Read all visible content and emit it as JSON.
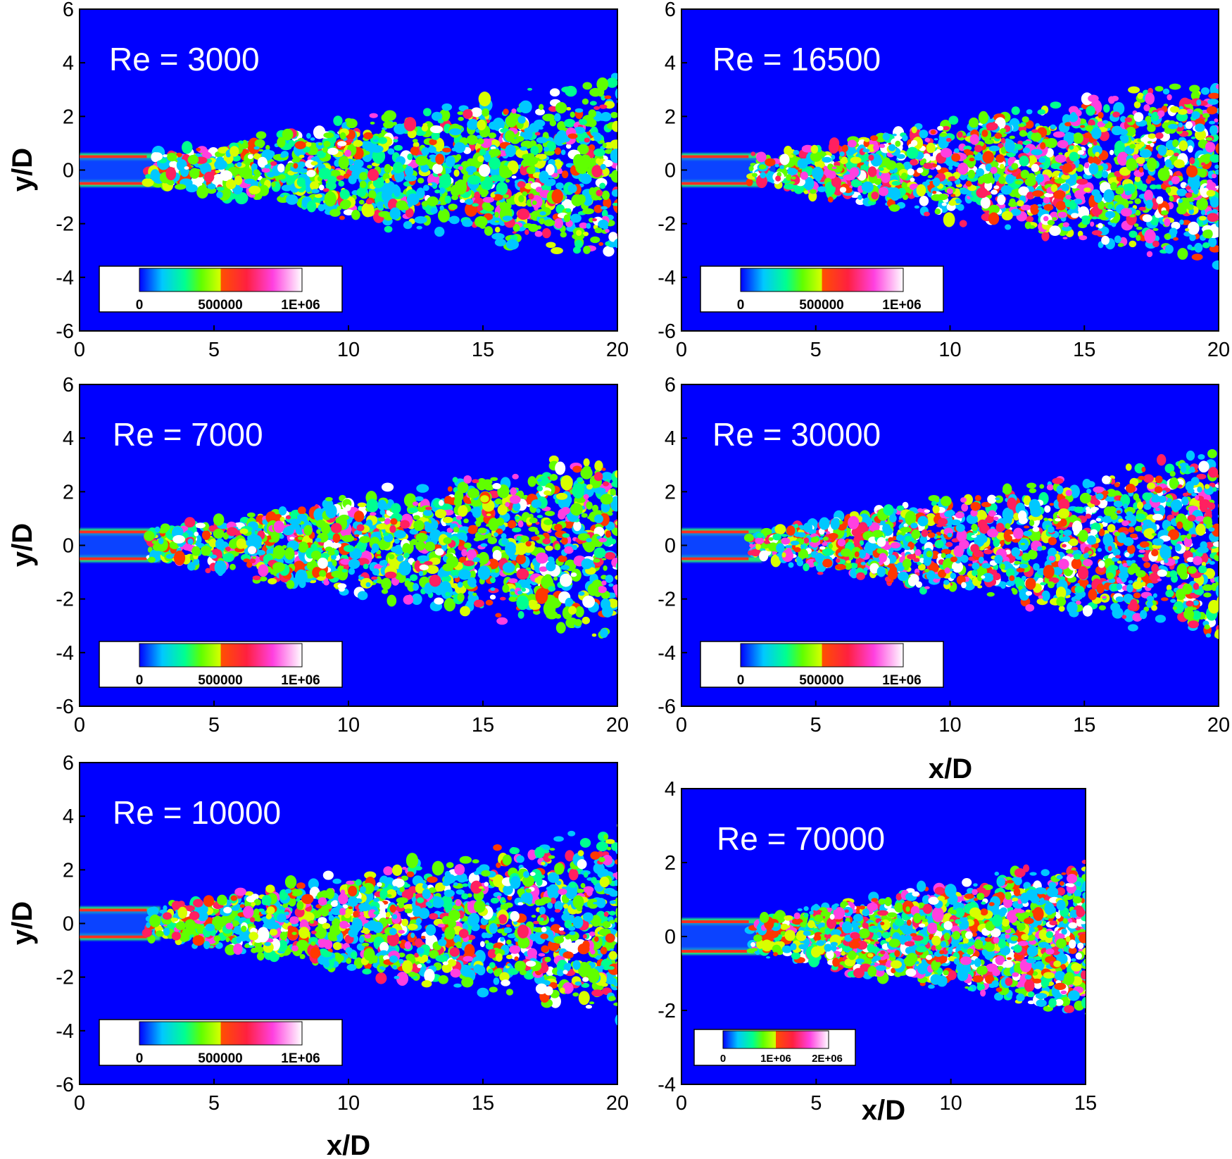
{
  "colors": {
    "background": "#0000ff",
    "colormap": [
      "#0000ff",
      "#00c8ff",
      "#00ff90",
      "#60ff00",
      "#d8ff00",
      "#ff3800",
      "#ff2060",
      "#ff40e0",
      "#ffffff"
    ]
  },
  "panels": [
    {
      "re_label": "Re = 3000",
      "xticks": [
        "0",
        "5",
        "10",
        "15",
        "20"
      ],
      "yticks": [
        "6",
        "4",
        "2",
        "0",
        "-2",
        "-4",
        "-6"
      ],
      "ylabel": "y/D",
      "xlabel": "",
      "colorbar_ticks": [
        "0",
        "500000",
        "1E+06"
      ],
      "intensity": 0.55
    },
    {
      "re_label": "Re = 16500",
      "xticks": [
        "0",
        "5",
        "10",
        "15",
        "20"
      ],
      "yticks": [
        "6",
        "4",
        "2",
        "0",
        "-2",
        "-4",
        "-6"
      ],
      "ylabel": "",
      "xlabel": "",
      "colorbar_ticks": [
        "0",
        "500000",
        "1E+06"
      ],
      "intensity": 0.8
    },
    {
      "re_label": "Re = 7000",
      "xticks": [
        "0",
        "5",
        "10",
        "15",
        "20"
      ],
      "yticks": [
        "6",
        "4",
        "2",
        "0",
        "-2",
        "-4",
        "-6"
      ],
      "ylabel": "y/D",
      "xlabel": "",
      "colorbar_ticks": [
        "0",
        "500000",
        "1E+06"
      ],
      "intensity": 0.65
    },
    {
      "re_label": "Re = 30000",
      "xticks": [
        "0",
        "5",
        "10",
        "15",
        "20"
      ],
      "yticks": [
        "6",
        "4",
        "2",
        "0",
        "-2",
        "-4",
        "-6"
      ],
      "ylabel": "",
      "xlabel": "x/D",
      "colorbar_ticks": [
        "0",
        "500000",
        "1E+06"
      ],
      "intensity": 0.9
    },
    {
      "re_label": "Re = 10000",
      "xticks": [
        "0",
        "5",
        "10",
        "15",
        "20"
      ],
      "yticks": [
        "6",
        "4",
        "2",
        "0",
        "-2",
        "-4",
        "-6"
      ],
      "ylabel": "y/D",
      "xlabel": "x/D",
      "colorbar_ticks": [
        "0",
        "500000",
        "1E+06"
      ],
      "intensity": 0.72
    },
    {
      "re_label": "Re = 70000",
      "xticks": [
        "0",
        "5",
        "10",
        "15"
      ],
      "yticks": [
        "4",
        "2",
        "0",
        "-2",
        "-4"
      ],
      "ylabel": "",
      "xlabel": "x/D",
      "colorbar_ticks": [
        "0",
        "1E+06",
        "2E+06"
      ],
      "intensity": 0.85
    }
  ]
}
